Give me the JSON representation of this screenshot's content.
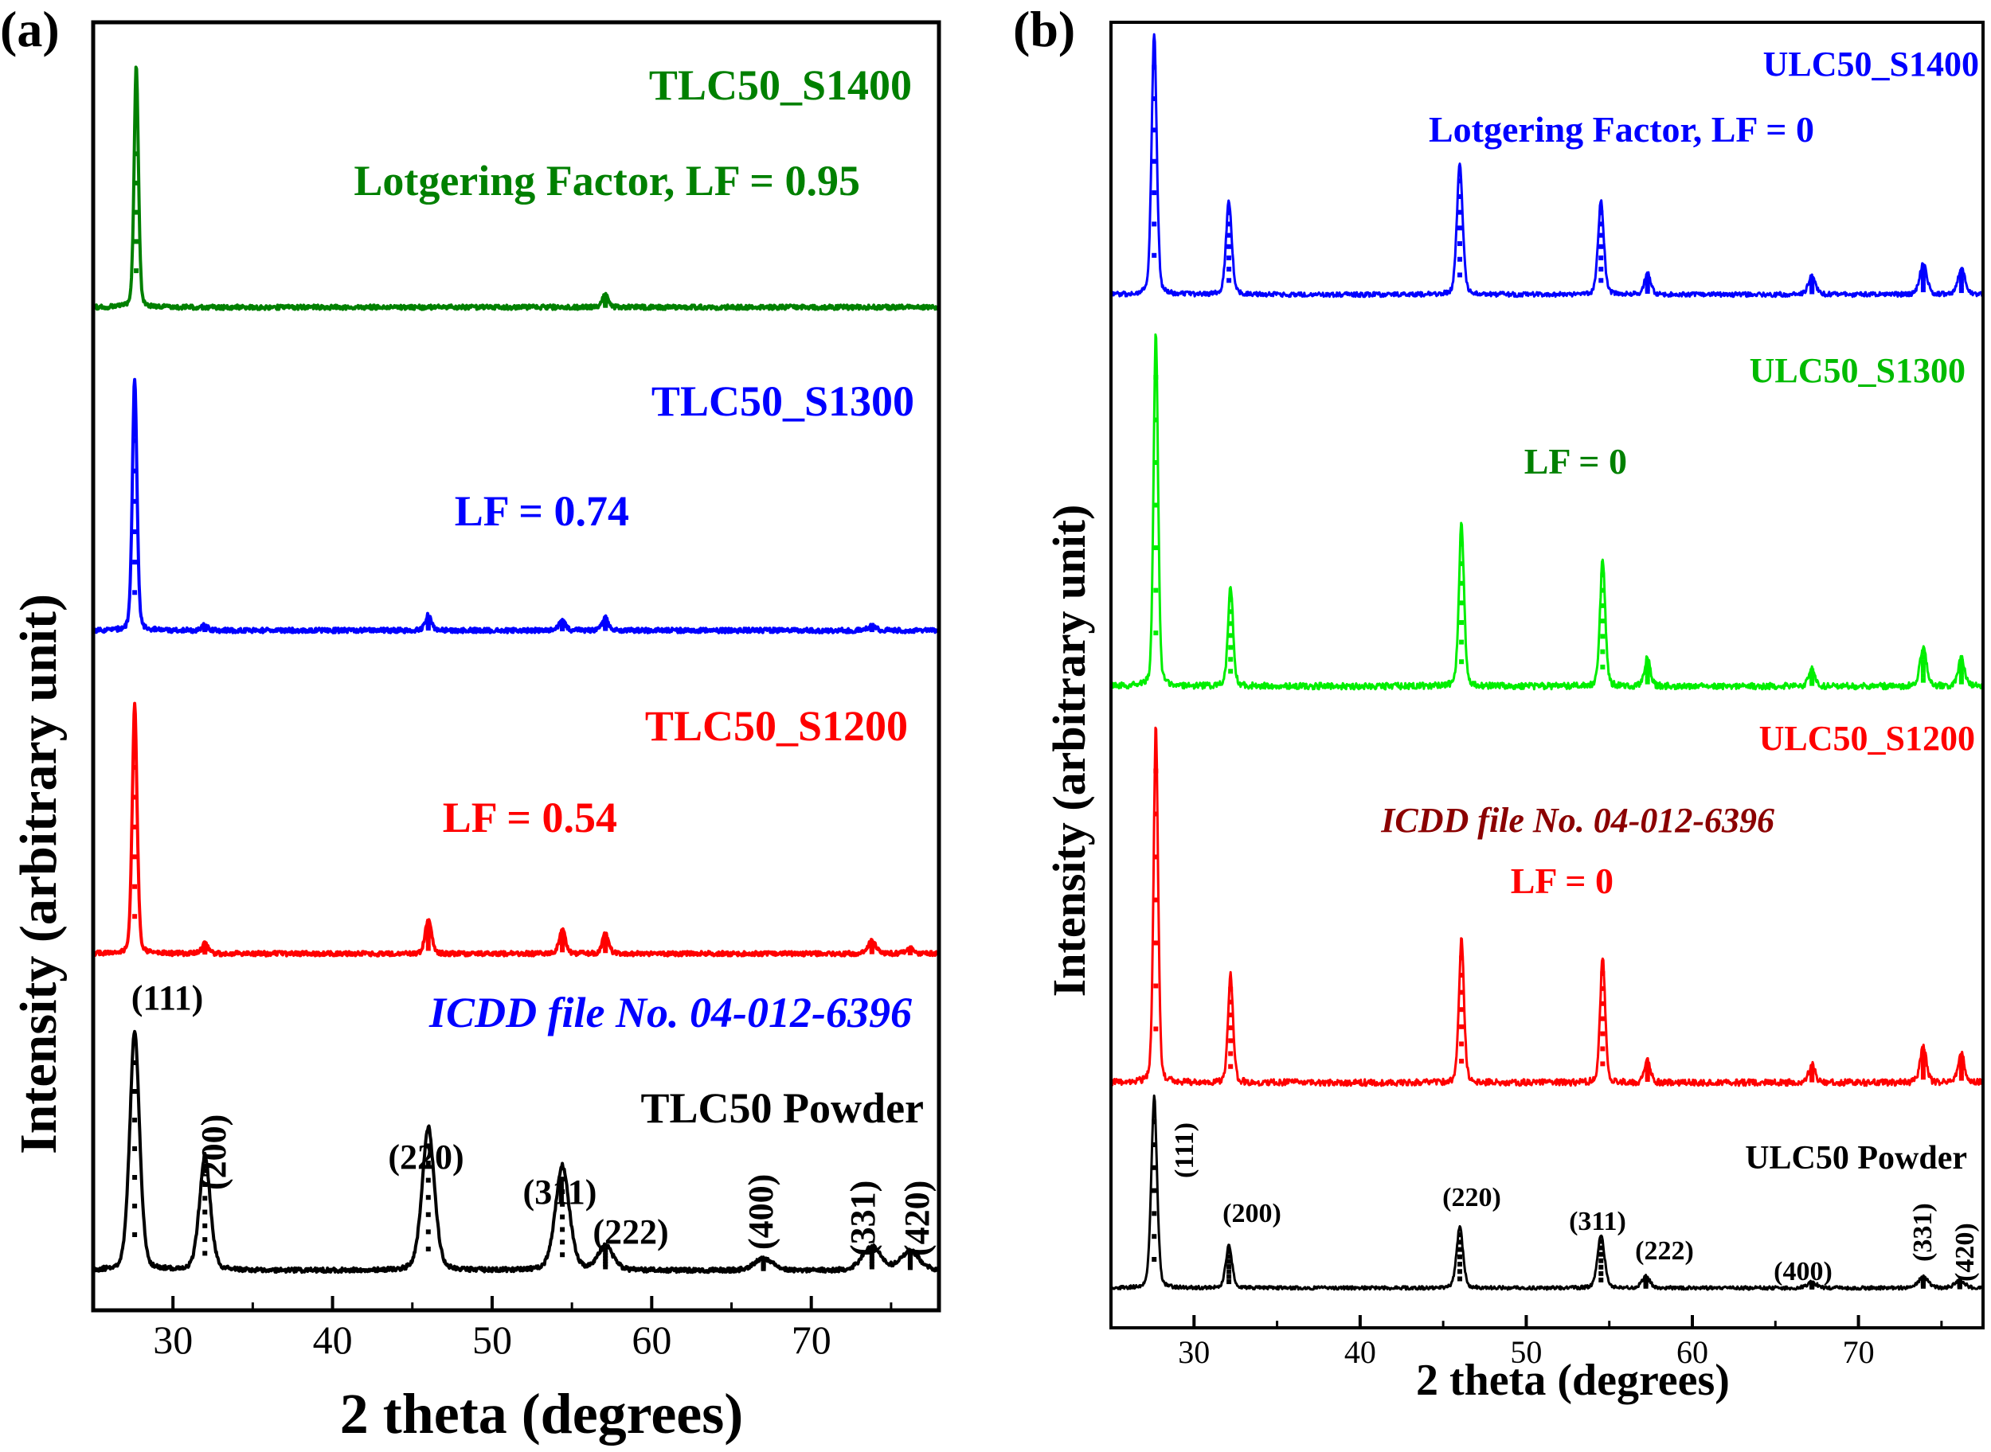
{
  "chart_data": [
    {
      "type": "line",
      "panel_label": "(a)",
      "xlabel": "2 theta (degrees)",
      "ylabel": "Intensity (arbitrary unit)",
      "xlim": [
        25,
        78
      ],
      "xticks": [
        30,
        40,
        50,
        60,
        70
      ],
      "yticks_shown": false,
      "series": [
        {
          "name": "TLC50 Powder",
          "color": "#000000",
          "peaks": [
            [
              27.6,
              1.0,
              0.32
            ],
            [
              32.0,
              0.48,
              0.35
            ],
            [
              46.0,
              0.6,
              0.4
            ],
            [
              54.4,
              0.44,
              0.45
            ],
            [
              57.1,
              0.1,
              0.5
            ],
            [
              67.0,
              0.05,
              0.6
            ],
            [
              73.8,
              0.1,
              0.6
            ],
            [
              76.2,
              0.08,
              0.6
            ]
          ],
          "annotations": [
            "ICDD file No. 04-012-6396"
          ],
          "peak_labels": [
            "(111)",
            "(200)",
            "(220)",
            "(311)",
            "(222)",
            "(400)",
            "(331)",
            "(420)"
          ]
        },
        {
          "name": "TLC50_S1200",
          "color": "#ff0000",
          "peaks": [
            [
              27.6,
              1.0,
              0.16
            ],
            [
              32.0,
              0.04,
              0.2
            ],
            [
              46.0,
              0.14,
              0.2
            ],
            [
              54.4,
              0.1,
              0.2
            ],
            [
              57.1,
              0.08,
              0.2
            ],
            [
              73.8,
              0.05,
              0.25
            ],
            [
              76.2,
              0.02,
              0.25
            ]
          ],
          "annotations": [
            "LF = 0.54"
          ]
        },
        {
          "name": "TLC50_S1300",
          "color": "#0000ff",
          "peaks": [
            [
              27.6,
              1.0,
              0.15
            ],
            [
              32.0,
              0.02,
              0.2
            ],
            [
              46.0,
              0.06,
              0.2
            ],
            [
              54.4,
              0.04,
              0.2
            ],
            [
              57.1,
              0.05,
              0.2
            ],
            [
              73.8,
              0.02,
              0.25
            ]
          ],
          "annotations": [
            "LF = 0.74"
          ]
        },
        {
          "name": "TLC50_S1400",
          "color": "#008000",
          "peaks": [
            [
              27.7,
              1.0,
              0.14
            ],
            [
              57.1,
              0.05,
              0.2
            ]
          ],
          "annotations": [
            "Lotgering Factor, LF = 0.95"
          ]
        }
      ]
    },
    {
      "type": "line",
      "panel_label": "(b)",
      "xlabel": "2 theta (degrees)",
      "ylabel": "Intensity (arbitrary unit)",
      "xlim": [
        25,
        77.5
      ],
      "xticks": [
        30,
        40,
        50,
        60,
        70
      ],
      "yticks_shown": false,
      "series": [
        {
          "name": "ULC50 Powder",
          "color": "#000000",
          "peaks": [
            [
              27.6,
              1.0,
              0.18
            ],
            [
              32.1,
              0.22,
              0.2
            ],
            [
              46.0,
              0.32,
              0.2
            ],
            [
              54.5,
              0.28,
              0.22
            ],
            [
              57.2,
              0.06,
              0.25
            ],
            [
              67.2,
              0.03,
              0.3
            ],
            [
              73.9,
              0.06,
              0.3
            ],
            [
              76.1,
              0.04,
              0.3
            ]
          ],
          "peak_labels": [
            "(111)",
            "(200)",
            "(220)",
            "(311)",
            "(222)",
            "(400)",
            "(331)",
            "(420)"
          ]
        },
        {
          "name": "ULC50_S1200",
          "color": "#ff0000",
          "peaks": [
            [
              27.7,
              1.0,
              0.14
            ],
            [
              32.2,
              0.3,
              0.16
            ],
            [
              46.1,
              0.4,
              0.16
            ],
            [
              54.6,
              0.35,
              0.16
            ],
            [
              57.3,
              0.06,
              0.18
            ],
            [
              67.2,
              0.05,
              0.2
            ],
            [
              73.9,
              0.1,
              0.2
            ],
            [
              76.2,
              0.08,
              0.2
            ]
          ],
          "annotations": [
            "ICDD file No. 04-012-6396",
            "LF = 0"
          ]
        },
        {
          "name": "ULC50_S1300",
          "color": "#00ee00",
          "peaks": [
            [
              27.7,
              1.0,
              0.14
            ],
            [
              32.2,
              0.28,
              0.16
            ],
            [
              46.1,
              0.46,
              0.16
            ],
            [
              54.6,
              0.36,
              0.16
            ],
            [
              57.3,
              0.08,
              0.18
            ],
            [
              67.2,
              0.05,
              0.2
            ],
            [
              73.9,
              0.11,
              0.2
            ],
            [
              76.2,
              0.08,
              0.2
            ]
          ],
          "annotations": [
            "LF = 0"
          ]
        },
        {
          "name": "ULC50_S1400",
          "color": "#0000ff",
          "peaks": [
            [
              27.6,
              1.0,
              0.16
            ],
            [
              32.1,
              0.36,
              0.18
            ],
            [
              46.0,
              0.5,
              0.18
            ],
            [
              54.5,
              0.36,
              0.18
            ],
            [
              57.3,
              0.08,
              0.2
            ],
            [
              67.2,
              0.07,
              0.22
            ],
            [
              73.9,
              0.12,
              0.22
            ],
            [
              76.2,
              0.1,
              0.22
            ]
          ],
          "annotations": [
            "Lotgering Factor, LF = 0"
          ]
        }
      ]
    }
  ]
}
